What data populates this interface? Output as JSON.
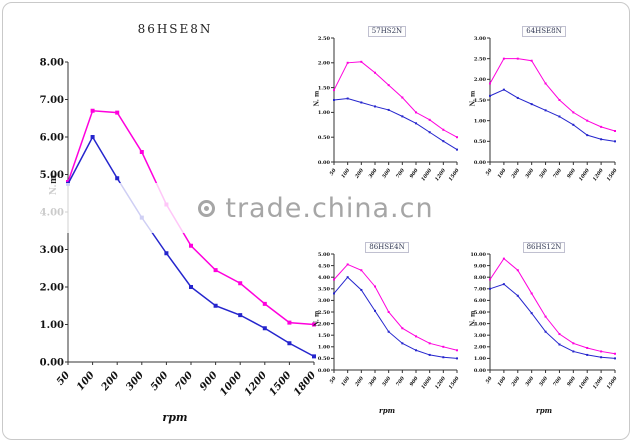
{
  "watermark": {
    "text": "trade.china.cn"
  },
  "chart_data": [
    {
      "type": "line",
      "title": "86HSE8N",
      "xlabel": "rpm",
      "ylabel": "N.m",
      "categories": [
        "50",
        "100",
        "200",
        "300",
        "500",
        "700",
        "900",
        "1000",
        "1200",
        "1500",
        "1800"
      ],
      "ylim": [
        0,
        8
      ],
      "ystep": 1,
      "decimals": 2,
      "grid": false,
      "legend": "none",
      "series": [
        {
          "name": "magenta-curve",
          "color": "#FF00DD",
          "values": [
            4.8,
            6.7,
            6.65,
            5.6,
            4.2,
            3.1,
            2.45,
            2.1,
            1.55,
            1.05,
            1.0
          ]
        },
        {
          "name": "blue-curve",
          "color": "#2525CD",
          "values": [
            4.75,
            6.0,
            4.9,
            3.85,
            2.9,
            2.0,
            1.5,
            1.25,
            0.9,
            0.5,
            0.15
          ]
        }
      ]
    },
    {
      "type": "line",
      "title": "57HS2N",
      "xlabel": "",
      "ylabel": "N. m",
      "categories": [
        "50",
        "100",
        "200",
        "300",
        "500",
        "700",
        "900",
        "1000",
        "1200",
        "1500"
      ],
      "ylim": [
        0,
        2.5
      ],
      "ystep": 0.5,
      "decimals": 2,
      "grid": false,
      "legend": "none",
      "series": [
        {
          "name": "magenta-curve",
          "color": "#FF00DD",
          "values": [
            1.45,
            2.0,
            2.02,
            1.8,
            1.55,
            1.3,
            1.0,
            0.85,
            0.65,
            0.5
          ]
        },
        {
          "name": "blue-curve",
          "color": "#2525CD",
          "values": [
            1.25,
            1.28,
            1.2,
            1.12,
            1.05,
            0.92,
            0.78,
            0.6,
            0.42,
            0.25
          ]
        }
      ]
    },
    {
      "type": "line",
      "title": "64HSE8N",
      "xlabel": "",
      "ylabel": "N. m",
      "categories": [
        "50",
        "100",
        "200",
        "300",
        "500",
        "700",
        "900",
        "1000",
        "1200",
        "1500"
      ],
      "ylim": [
        0,
        3
      ],
      "ystep": 0.5,
      "decimals": 2,
      "grid": false,
      "legend": "none",
      "series": [
        {
          "name": "magenta-curve",
          "color": "#FF00DD",
          "values": [
            1.9,
            2.5,
            2.5,
            2.45,
            1.9,
            1.5,
            1.2,
            1.0,
            0.85,
            0.75
          ]
        },
        {
          "name": "blue-curve",
          "color": "#2525CD",
          "values": [
            1.6,
            1.75,
            1.55,
            1.4,
            1.25,
            1.1,
            0.9,
            0.65,
            0.55,
            0.5
          ]
        }
      ]
    },
    {
      "type": "line",
      "title": "86HSE4N",
      "xlabel": "rpm",
      "ylabel": "N. m",
      "categories": [
        "50",
        "100",
        "200",
        "300",
        "500",
        "700",
        "900",
        "1000",
        "1200",
        "1500"
      ],
      "ylim": [
        0,
        5
      ],
      "ystep": 0.5,
      "decimals": 2,
      "grid": false,
      "legend": "none",
      "series": [
        {
          "name": "magenta-curve",
          "color": "#FF00DD",
          "values": [
            3.9,
            4.55,
            4.3,
            3.6,
            2.5,
            1.8,
            1.45,
            1.15,
            1.0,
            0.85
          ]
        },
        {
          "name": "blue-curve",
          "color": "#2525CD",
          "values": [
            3.3,
            4.0,
            3.45,
            2.55,
            1.65,
            1.15,
            0.85,
            0.65,
            0.55,
            0.5
          ]
        }
      ]
    },
    {
      "type": "line",
      "title": "86HS12N",
      "xlabel": "rpm",
      "ylabel": "N. m",
      "categories": [
        "50",
        "100",
        "200",
        "300",
        "500",
        "700",
        "900",
        "1000",
        "1200",
        "1500"
      ],
      "ylim": [
        0,
        10
      ],
      "ystep": 1,
      "decimals": 2,
      "grid": false,
      "legend": "none",
      "series": [
        {
          "name": "magenta-curve",
          "color": "#FF00DD",
          "values": [
            7.8,
            9.6,
            8.6,
            6.6,
            4.6,
            3.1,
            2.3,
            1.9,
            1.6,
            1.4
          ]
        },
        {
          "name": "blue-curve",
          "color": "#2525CD",
          "values": [
            7.0,
            7.4,
            6.4,
            4.9,
            3.3,
            2.2,
            1.6,
            1.3,
            1.1,
            1.0
          ]
        }
      ]
    }
  ]
}
